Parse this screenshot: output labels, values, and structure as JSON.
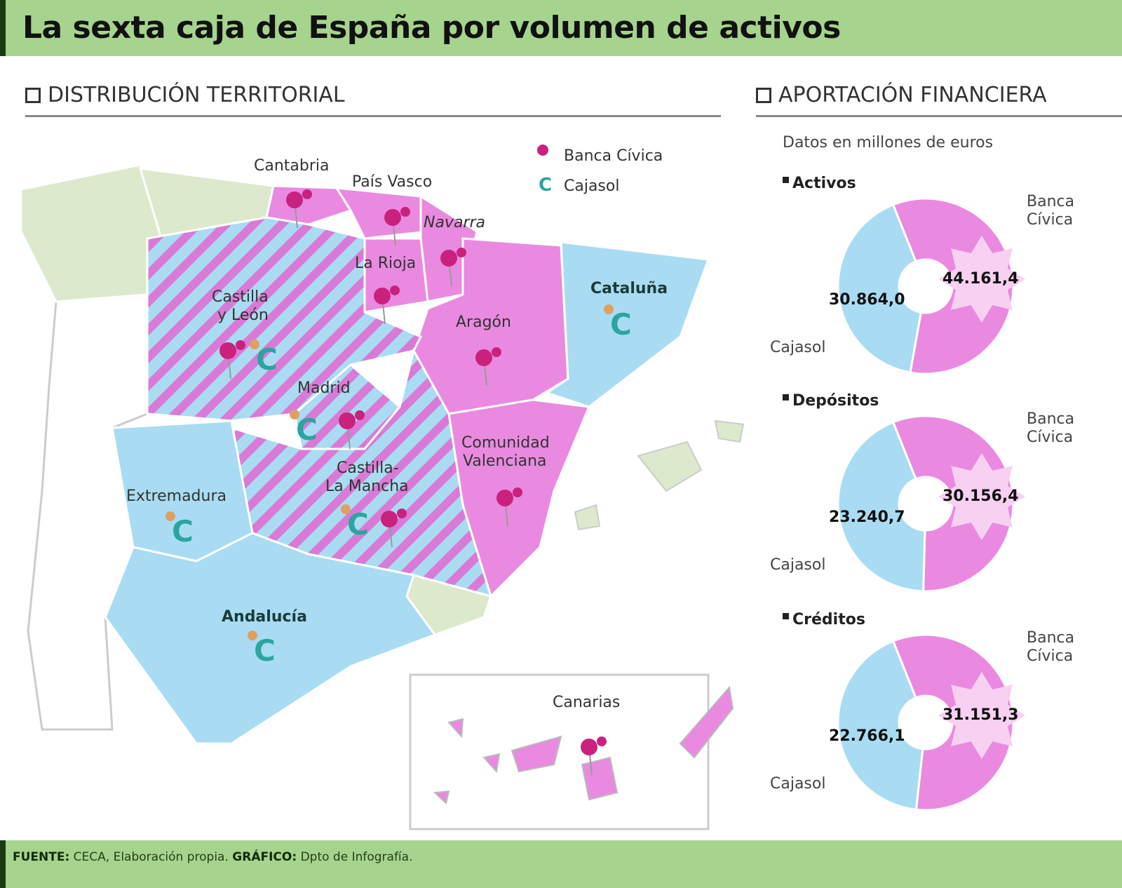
{
  "title": "La sexta caja de España por volumen de activos",
  "left_section": "DISTRIBUCIÓN TERRITORIAL",
  "right_section": "APORTACIÓN FINANCIERA",
  "legend": {
    "banca": "Banca Cívica",
    "cajasol": "Cajasol"
  },
  "colors": {
    "banca": "#e98ae0",
    "cajasol": "#a9dcf2",
    "pin_banca": "#c8217e",
    "pin_cajasol": "#2aa5a0",
    "other": "#dde9cc",
    "title_bg": "#a6d38e"
  },
  "map_labels": {
    "cantabria": "Cantabria",
    "pais_vasco": "País Vasco",
    "navarra": "Navarra",
    "la_rioja": "La Rioja",
    "castilla_leon_1": "Castilla",
    "castilla_leon_2": "y León",
    "aragon": "Aragón",
    "cataluna": "Cataluña",
    "madrid": "Madrid",
    "valencia_1": "Comunidad",
    "valencia_2": "Valenciana",
    "clm_1": "Castilla-",
    "clm_2": "La Mancha",
    "extremadura": "Extremadura",
    "andalucia": "Andalucía",
    "canarias": "Canarias"
  },
  "chart_data": {
    "type": "pie",
    "subtitle": "Datos en millones de euros",
    "charts": [
      {
        "title": "Activos",
        "labels": [
          "Banca Cívica",
          "Cajasol"
        ],
        "values": [
          44161.4,
          30864.0
        ],
        "value_labels": [
          "44.161,4",
          "30.864,0"
        ]
      },
      {
        "title": "Depósitos",
        "labels": [
          "Banca Cívica",
          "Cajasol"
        ],
        "values": [
          30156.4,
          23240.7
        ],
        "value_labels": [
          "30.156,4",
          "23.240,7"
        ]
      },
      {
        "title": "Créditos",
        "labels": [
          "Banca Cívica",
          "Cajasol"
        ],
        "values": [
          31151.3,
          22766.1
        ],
        "value_labels": [
          "31.151,3",
          "22.766,1"
        ]
      }
    ],
    "label_banca_1": "Banca",
    "label_banca_2": "Cívica",
    "label_cajasol": "Cajasol"
  },
  "footer": {
    "source_label": "FUENTE:",
    "source": "CECA, Elaboración propia.",
    "graphic_label": "GRÁFICO:",
    "graphic": "Dpto de Infografía."
  }
}
